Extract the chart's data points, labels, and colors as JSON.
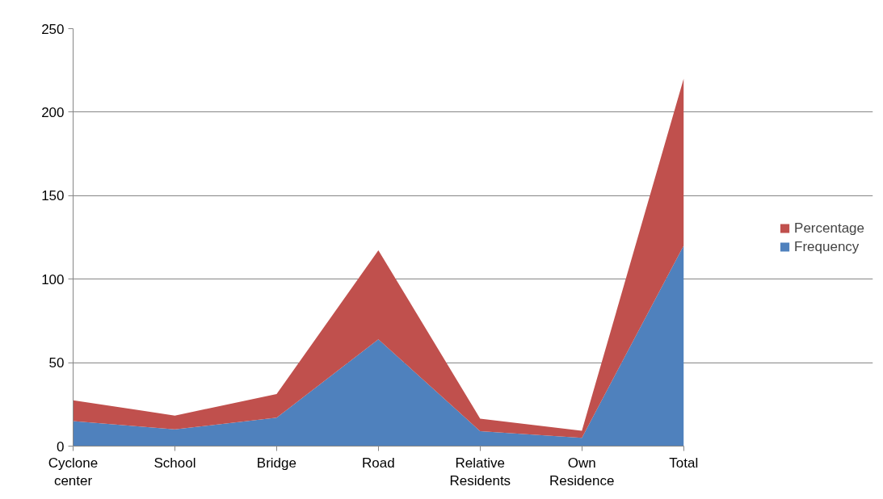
{
  "chart_data": {
    "type": "area",
    "stacked": true,
    "categories": [
      "Cyclone center",
      "School",
      "Bridge",
      "Road",
      "Relative Residents",
      "Own Residence",
      "Total"
    ],
    "series": [
      {
        "name": "Frequency",
        "color": "#4f81bd",
        "values": [
          15,
          10,
          17,
          64,
          9,
          5,
          120
        ]
      },
      {
        "name": "Percentage",
        "color": "#c0504d",
        "values": [
          12.5,
          8.3,
          14.2,
          53.3,
          7.5,
          4.2,
          100
        ]
      }
    ],
    "ylim": [
      0,
      250
    ],
    "yticks": [
      0,
      50,
      100,
      150,
      200,
      250
    ],
    "grid": "y",
    "legend": "right"
  }
}
